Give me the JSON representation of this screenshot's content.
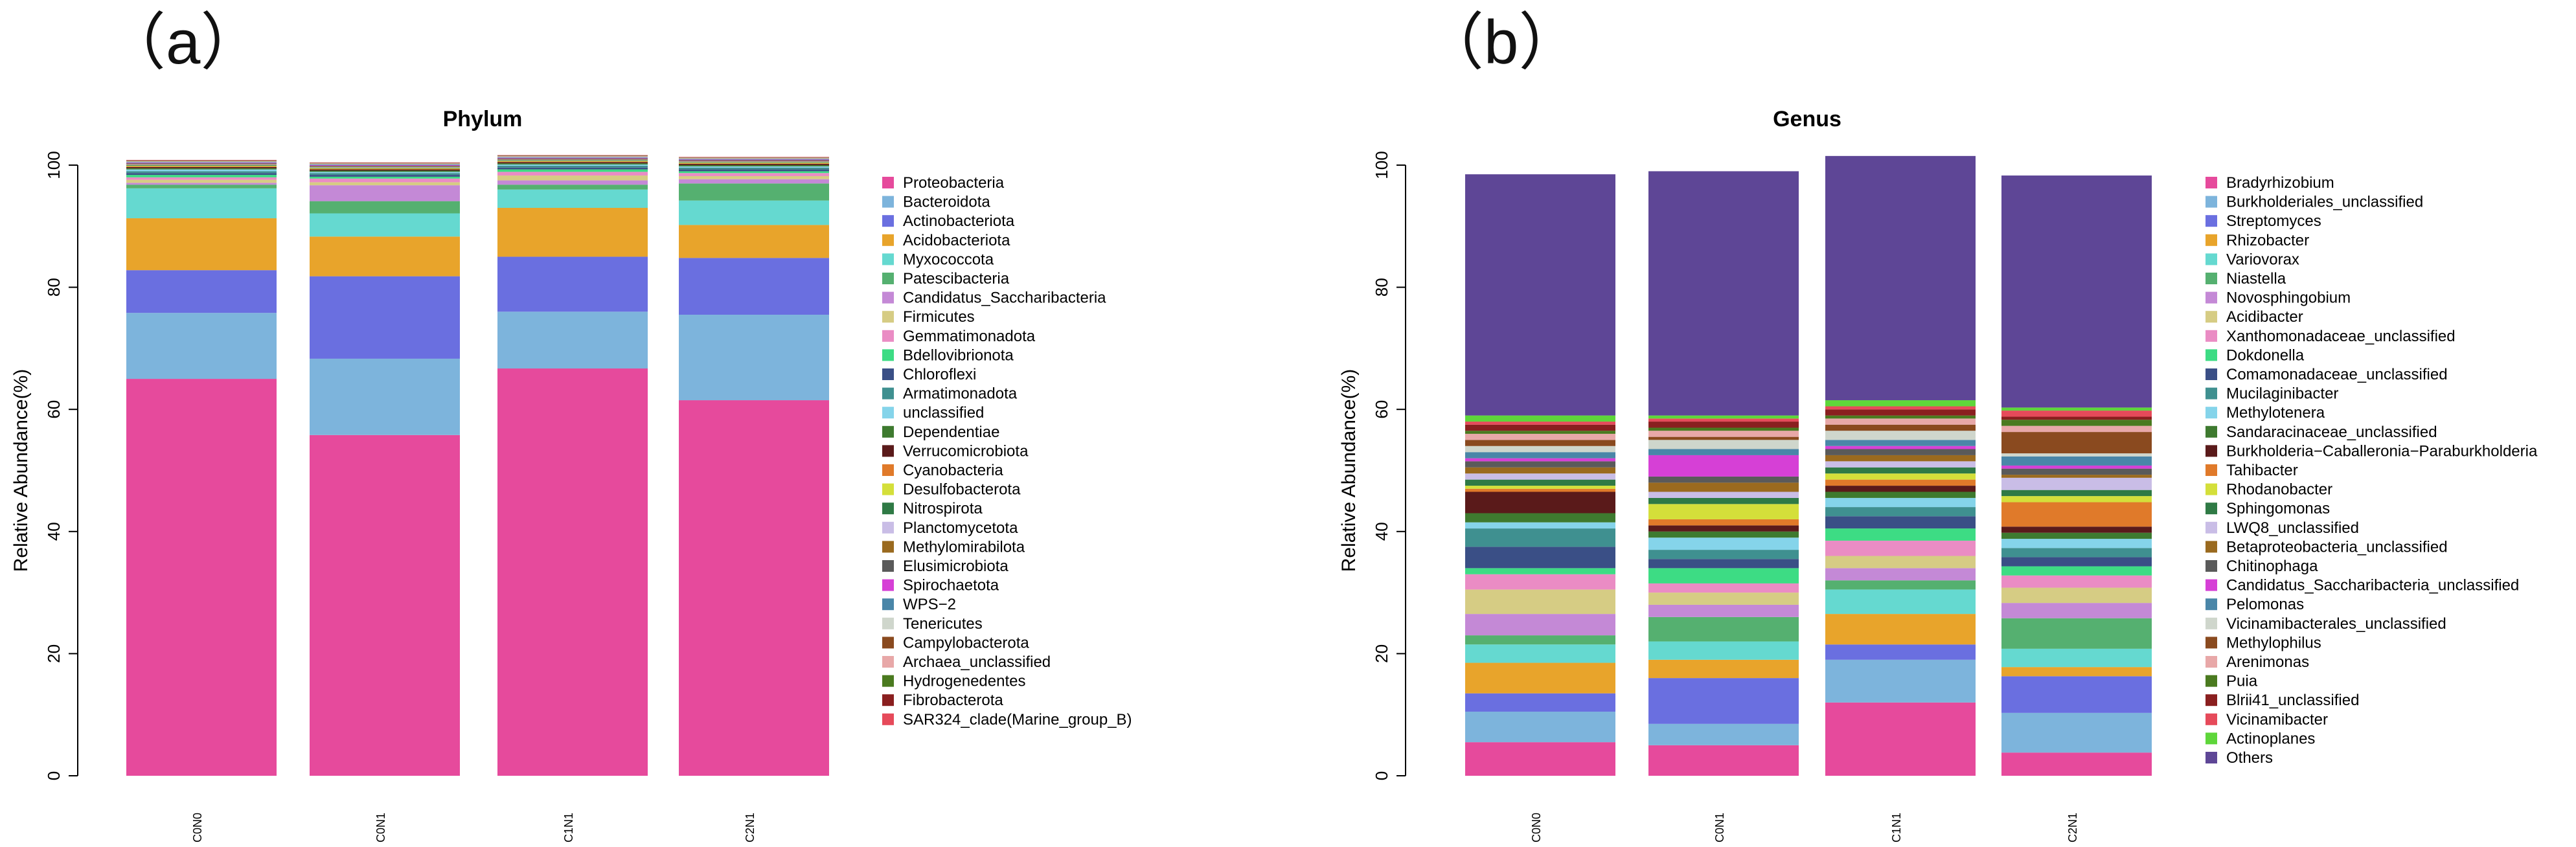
{
  "panels": [
    {
      "label": "（a）"
    },
    {
      "label": "（b）"
    }
  ],
  "chart_data": [
    {
      "type": "bar",
      "stacked": true,
      "title": "Phylum",
      "xlabel": "",
      "ylabel": "Relative Abundance(%)",
      "ylim": [
        0,
        100
      ],
      "yticks": [
        0,
        20,
        40,
        60,
        80,
        100
      ],
      "categories": [
        "C0N0",
        "C0N1",
        "C1N1",
        "C2N1"
      ],
      "legend_position": "right",
      "series": [
        {
          "name": "Proteobacteria",
          "color": "#e64a9c",
          "values": [
            65.0,
            55.8,
            66.7,
            61.5
          ]
        },
        {
          "name": "Bacteroidota",
          "color": "#7db4dc",
          "values": [
            10.8,
            12.5,
            9.3,
            14.0
          ]
        },
        {
          "name": "Actinobacteriota",
          "color": "#6a6fe0",
          "values": [
            7.0,
            13.5,
            9.0,
            9.3
          ]
        },
        {
          "name": "Acidobacteriota",
          "color": "#e8a42b",
          "values": [
            8.5,
            6.5,
            8.0,
            5.4
          ]
        },
        {
          "name": "Myxococcota",
          "color": "#65d9d0",
          "values": [
            4.9,
            3.8,
            3.0,
            4.0
          ]
        },
        {
          "name": "Patescibacteria",
          "color": "#55b070",
          "values": [
            0.6,
            2.0,
            0.8,
            2.8
          ]
        },
        {
          "name": "Candidatus_Saccharibacteria",
          "color": "#c489d6",
          "values": [
            0.3,
            2.6,
            0.7,
            0.7
          ]
        },
        {
          "name": "Firmicutes",
          "color": "#d6cc84",
          "values": [
            0.5,
            0.5,
            0.8,
            0.5
          ]
        },
        {
          "name": "Gemmatimonadota",
          "color": "#ea8cc4",
          "values": [
            0.4,
            0.6,
            0.6,
            0.5
          ]
        },
        {
          "name": "Bdellovibrionota",
          "color": "#3ddc84",
          "values": [
            0.4,
            0.3,
            0.4,
            0.3
          ]
        },
        {
          "name": "Chloroflexi",
          "color": "#3a4f86",
          "values": [
            0.3,
            0.3,
            0.3,
            0.3
          ]
        },
        {
          "name": "Armatimonadota",
          "color": "#3f9090",
          "values": [
            0.3,
            0.3,
            0.3,
            0.3
          ]
        },
        {
          "name": "unclassified",
          "color": "#85d4ea",
          "values": [
            0.3,
            0.2,
            0.2,
            0.2
          ]
        },
        {
          "name": "Dependentiae",
          "color": "#3e7a2f",
          "values": [
            0.2,
            0.2,
            0.2,
            0.2
          ]
        },
        {
          "name": "Verrucomicrobiota",
          "color": "#5a1a1a",
          "values": [
            0.2,
            0.2,
            0.2,
            0.2
          ]
        },
        {
          "name": "Cyanobacteria",
          "color": "#e07a2a",
          "values": [
            0.1,
            0.1,
            0.1,
            0.1
          ]
        },
        {
          "name": "Desulfobacterota",
          "color": "#d4df3a",
          "values": [
            0.1,
            0.1,
            0.1,
            0.1
          ]
        },
        {
          "name": "Nitrospirota",
          "color": "#2f7a45",
          "values": [
            0.1,
            0.1,
            0.1,
            0.1
          ]
        },
        {
          "name": "Planctomycetota",
          "color": "#c9bde6",
          "values": [
            0.1,
            0.1,
            0.1,
            0.1
          ]
        },
        {
          "name": "Methylomirabilota",
          "color": "#9a6a1f",
          "values": [
            0.1,
            0.1,
            0.1,
            0.1
          ]
        },
        {
          "name": "Elusimicrobiota",
          "color": "#5a5a5a",
          "values": [
            0.1,
            0.1,
            0.1,
            0.1
          ]
        },
        {
          "name": "Spirochaetota",
          "color": "#d640d6",
          "values": [
            0.1,
            0.1,
            0.1,
            0.1
          ]
        },
        {
          "name": "WPS−2",
          "color": "#4a86a8",
          "values": [
            0.1,
            0.1,
            0.1,
            0.1
          ]
        },
        {
          "name": "Tenericutes",
          "color": "#cfd6cc",
          "values": [
            0.1,
            0.1,
            0.1,
            0.1
          ]
        },
        {
          "name": "Campylobacterota",
          "color": "#8a4a1f",
          "values": [
            0.05,
            0.05,
            0.05,
            0.05
          ]
        },
        {
          "name": "Archaea_unclassified",
          "color": "#e8a8a8",
          "values": [
            0.05,
            0.05,
            0.05,
            0.05
          ]
        },
        {
          "name": "Hydrogenedentes",
          "color": "#4a7a1f",
          "values": [
            0.05,
            0.05,
            0.05,
            0.05
          ]
        },
        {
          "name": "Fibrobacterota",
          "color": "#8a1f1f",
          "values": [
            0.05,
            0.05,
            0.05,
            0.05
          ]
        },
        {
          "name": "SAR324_clade(Marine_group_B)",
          "color": "#e64a5a",
          "values": [
            0.05,
            0.05,
            0.05,
            0.05
          ]
        }
      ]
    },
    {
      "type": "bar",
      "stacked": true,
      "title": "Genus",
      "xlabel": "",
      "ylabel": "Relative Abundance(%)",
      "ylim": [
        0,
        100
      ],
      "yticks": [
        0,
        20,
        40,
        60,
        80,
        100
      ],
      "categories": [
        "C0N0",
        "C0N1",
        "C1N1",
        "C2N1"
      ],
      "legend_position": "right",
      "series": [
        {
          "name": "Bradyrhizobium",
          "color": "#e64a9c",
          "values": [
            5.5,
            5.0,
            12.0,
            3.8
          ]
        },
        {
          "name": "Burkholderiales_unclassified",
          "color": "#7db4dc",
          "values": [
            5.0,
            3.5,
            7.0,
            6.5
          ]
        },
        {
          "name": "Streptomyces",
          "color": "#6a6fe0",
          "values": [
            3.0,
            7.5,
            2.5,
            6.0
          ]
        },
        {
          "name": "Rhizobacter",
          "color": "#e8a42b",
          "values": [
            5.0,
            3.0,
            5.0,
            1.5
          ]
        },
        {
          "name": "Variovorax",
          "color": "#65d9d0",
          "values": [
            3.0,
            3.0,
            4.0,
            3.0
          ]
        },
        {
          "name": "Niastella",
          "color": "#55b070",
          "values": [
            1.5,
            4.0,
            1.5,
            5.0
          ]
        },
        {
          "name": "Novosphingobium",
          "color": "#c489d6",
          "values": [
            3.5,
            2.0,
            2.0,
            2.5
          ]
        },
        {
          "name": "Acidibacter",
          "color": "#d6cc84",
          "values": [
            4.0,
            2.0,
            2.0,
            2.5
          ]
        },
        {
          "name": "Xanthomonadaceae_unclassified",
          "color": "#ea8cc4",
          "values": [
            2.5,
            1.5,
            2.5,
            2.0
          ]
        },
        {
          "name": "Dokdonella",
          "color": "#3ddc84",
          "values": [
            1.0,
            2.5,
            2.0,
            1.5
          ]
        },
        {
          "name": "Comamonadaceae_unclassified",
          "color": "#3a4f86",
          "values": [
            3.5,
            1.5,
            2.0,
            1.5
          ]
        },
        {
          "name": "Mucilaginibacter",
          "color": "#3f9090",
          "values": [
            3.0,
            1.5,
            1.5,
            1.5
          ]
        },
        {
          "name": "Methylotenera",
          "color": "#85d4ea",
          "values": [
            1.0,
            2.0,
            1.5,
            1.5
          ]
        },
        {
          "name": "Sandaracinaceae_unclassified",
          "color": "#3e7a2f",
          "values": [
            1.5,
            1.0,
            1.0,
            1.0
          ]
        },
        {
          "name": "Burkholderia−Caballeronia−Paraburkholderia",
          "color": "#5a1a1a",
          "values": [
            3.5,
            1.0,
            1.0,
            1.0
          ]
        },
        {
          "name": "Tahibacter",
          "color": "#e07a2a",
          "values": [
            0.5,
            1.0,
            1.0,
            4.0
          ]
        },
        {
          "name": "Rhodanobacter",
          "color": "#d4df3a",
          "values": [
            0.5,
            2.5,
            1.0,
            1.0
          ]
        },
        {
          "name": "Sphingomonas",
          "color": "#2f7a45",
          "values": [
            1.0,
            1.0,
            1.0,
            1.0
          ]
        },
        {
          "name": "LWQ8_unclassified",
          "color": "#c9bde6",
          "values": [
            1.0,
            1.0,
            1.0,
            2.0
          ]
        },
        {
          "name": "Betaproteobacteria_unclassified",
          "color": "#9a6a1f",
          "values": [
            1.0,
            1.5,
            1.0,
            0.5
          ]
        },
        {
          "name": "Chitinophaga",
          "color": "#5a5a5a",
          "values": [
            1.0,
            1.0,
            1.0,
            1.0
          ]
        },
        {
          "name": "Candidatus_Saccharibacteria_unclassified",
          "color": "#d640d6",
          "values": [
            0.5,
            3.5,
            0.5,
            0.5
          ]
        },
        {
          "name": "Pelomonas",
          "color": "#4a86a8",
          "values": [
            1.0,
            1.0,
            1.0,
            1.5
          ]
        },
        {
          "name": "Vicinamibacterales_unclassified",
          "color": "#cfd6cc",
          "values": [
            1.0,
            1.5,
            1.5,
            0.5
          ]
        },
        {
          "name": "Methylophilus",
          "color": "#8a4a1f",
          "values": [
            1.0,
            0.5,
            1.0,
            3.5
          ]
        },
        {
          "name": "Arenimonas",
          "color": "#e8a8a8",
          "values": [
            1.0,
            1.0,
            1.0,
            1.0
          ]
        },
        {
          "name": "Puia",
          "color": "#4a7a1f",
          "values": [
            0.5,
            0.5,
            0.5,
            1.0
          ]
        },
        {
          "name": "Blrii41_unclassified",
          "color": "#8a1f1f",
          "values": [
            1.0,
            1.0,
            1.0,
            0.5
          ]
        },
        {
          "name": "Vicinamibacter",
          "color": "#e64a5a",
          "values": [
            0.5,
            0.5,
            0.5,
            1.0
          ]
        },
        {
          "name": "Actinoplanes",
          "color": "#5ed63a",
          "values": [
            1.0,
            0.5,
            1.0,
            0.5
          ]
        },
        {
          "name": "Others",
          "color": "#5e4696",
          "values": [
            39.5,
            40.0,
            40.0,
            38.0
          ]
        }
      ]
    }
  ]
}
